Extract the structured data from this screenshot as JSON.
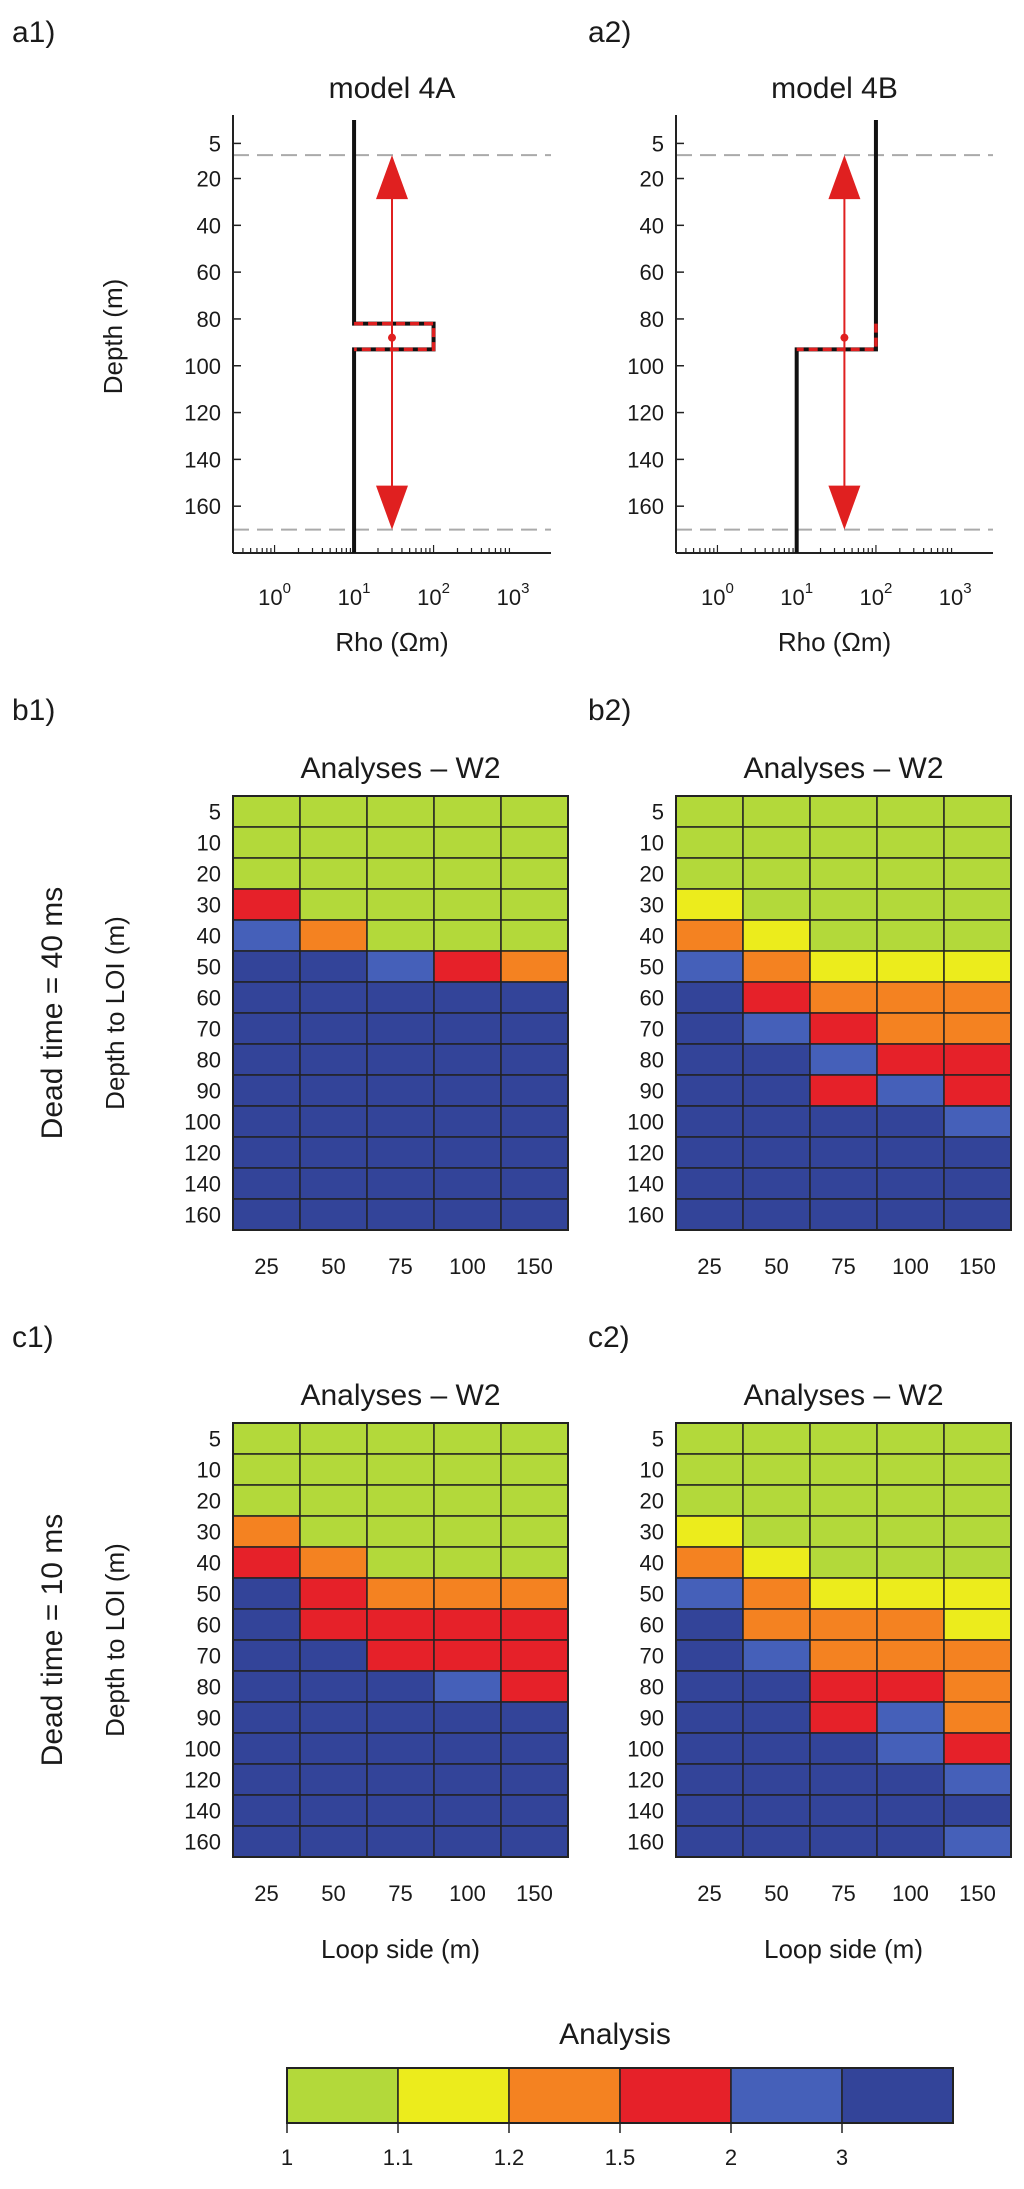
{
  "chart_data": [
    {
      "id": "a1",
      "type": "line",
      "panel_label": "a1)",
      "title": "model 4A",
      "xlabel": "Rho (Ωm)",
      "ylabel": "Depth (m)",
      "xscale": "log",
      "xlim": [
        0.3,
        3000
      ],
      "xtick_labels": [
        {
          "base": "10",
          "exp": "0",
          "value": 1
        },
        {
          "base": "10",
          "exp": "1",
          "value": 10
        },
        {
          "base": "10",
          "exp": "2",
          "value": 100
        },
        {
          "base": "10",
          "exp": "3",
          "value": 1000
        }
      ],
      "ylim": [
        180,
        -5
      ],
      "yticks": [
        5,
        20,
        40,
        60,
        80,
        100,
        120,
        140,
        160
      ],
      "reference_lines_depth": [
        10,
        170
      ],
      "model_profile": {
        "depth": [
          -5,
          82,
          82,
          93,
          93,
          180
        ],
        "rho": [
          10,
          10,
          100,
          100,
          10,
          10
        ]
      },
      "perturbed_profile": {
        "depth": [
          82,
          82,
          93,
          93
        ],
        "rho": [
          10,
          100,
          100,
          10
        ]
      },
      "arrow": {
        "rho": 30,
        "depth_from": 10,
        "depth_to": 170,
        "mid_depth": 88
      }
    },
    {
      "id": "a2",
      "type": "line",
      "panel_label": "a2)",
      "title": "model 4B",
      "xlabel": "Rho (Ωm)",
      "ylabel": "",
      "xscale": "log",
      "xlim": [
        0.3,
        3000
      ],
      "xtick_labels": [
        {
          "base": "10",
          "exp": "0",
          "value": 1
        },
        {
          "base": "10",
          "exp": "1",
          "value": 10
        },
        {
          "base": "10",
          "exp": "2",
          "value": 100
        },
        {
          "base": "10",
          "exp": "3",
          "value": 1000
        }
      ],
      "ylim": [
        180,
        -5
      ],
      "yticks": [
        5,
        20,
        40,
        60,
        80,
        100,
        120,
        140,
        160
      ],
      "reference_lines_depth": [
        10,
        170
      ],
      "model_profile": {
        "depth": [
          -5,
          93,
          93,
          180
        ],
        "rho": [
          100,
          100,
          10,
          10
        ]
      },
      "perturbed_profile": {
        "depth": [
          82,
          82,
          93,
          93
        ],
        "rho": [
          100,
          100,
          100,
          10
        ]
      },
      "arrow": {
        "rho": 40,
        "depth_from": 10,
        "depth_to": 170,
        "mid_depth": 88
      }
    },
    {
      "id": "b1",
      "type": "heatmap",
      "panel_label": "b1)",
      "title": "Analyses – W2",
      "xlabel": "",
      "ylabel": "Depth to LOI (m)",
      "row_label": "Dead time = 40 ms",
      "x": [
        "25",
        "50",
        "75",
        "100",
        "150"
      ],
      "y": [
        "5",
        "10",
        "20",
        "30",
        "40",
        "50",
        "60",
        "70",
        "80",
        "90",
        "100",
        "120",
        "140",
        "160"
      ],
      "class_index": [
        [
          0,
          0,
          0,
          0,
          0
        ],
        [
          0,
          0,
          0,
          0,
          0
        ],
        [
          0,
          0,
          0,
          0,
          0
        ],
        [
          3,
          0,
          0,
          0,
          0
        ],
        [
          4,
          2,
          0,
          0,
          0
        ],
        [
          5,
          5,
          4,
          3,
          2
        ],
        [
          5,
          5,
          5,
          5,
          5
        ],
        [
          5,
          5,
          5,
          5,
          5
        ],
        [
          5,
          5,
          5,
          5,
          5
        ],
        [
          5,
          5,
          5,
          5,
          5
        ],
        [
          5,
          5,
          5,
          5,
          5
        ],
        [
          5,
          5,
          5,
          5,
          5
        ],
        [
          5,
          5,
          5,
          5,
          5
        ],
        [
          5,
          5,
          5,
          5,
          5
        ]
      ]
    },
    {
      "id": "b2",
      "type": "heatmap",
      "panel_label": "b2)",
      "title": "Analyses – W2",
      "xlabel": "",
      "ylabel": "",
      "x": [
        "25",
        "50",
        "75",
        "100",
        "150"
      ],
      "y": [
        "5",
        "10",
        "20",
        "30",
        "40",
        "50",
        "60",
        "70",
        "80",
        "90",
        "100",
        "120",
        "140",
        "160"
      ],
      "class_index": [
        [
          0,
          0,
          0,
          0,
          0
        ],
        [
          0,
          0,
          0,
          0,
          0
        ],
        [
          0,
          0,
          0,
          0,
          0
        ],
        [
          1,
          0,
          0,
          0,
          0
        ],
        [
          2,
          1,
          0,
          0,
          0
        ],
        [
          4,
          2,
          1,
          1,
          1
        ],
        [
          5,
          3,
          2,
          2,
          2
        ],
        [
          5,
          4,
          3,
          2,
          2
        ],
        [
          5,
          5,
          4,
          3,
          3
        ],
        [
          5,
          5,
          3,
          4,
          3
        ],
        [
          5,
          5,
          5,
          5,
          4
        ],
        [
          5,
          5,
          5,
          5,
          5
        ],
        [
          5,
          5,
          5,
          5,
          5
        ],
        [
          5,
          5,
          5,
          5,
          5
        ]
      ]
    },
    {
      "id": "c1",
      "type": "heatmap",
      "panel_label": "c1)",
      "title": "Analyses – W2",
      "xlabel": "Loop side (m)",
      "ylabel": "Depth to LOI (m)",
      "row_label": "Dead time = 10 ms",
      "x": [
        "25",
        "50",
        "75",
        "100",
        "150"
      ],
      "y": [
        "5",
        "10",
        "20",
        "30",
        "40",
        "50",
        "60",
        "70",
        "80",
        "90",
        "100",
        "120",
        "140",
        "160"
      ],
      "class_index": [
        [
          0,
          0,
          0,
          0,
          0
        ],
        [
          0,
          0,
          0,
          0,
          0
        ],
        [
          0,
          0,
          0,
          0,
          0
        ],
        [
          2,
          0,
          0,
          0,
          0
        ],
        [
          3,
          2,
          0,
          0,
          0
        ],
        [
          5,
          3,
          2,
          2,
          2
        ],
        [
          5,
          3,
          3,
          3,
          3
        ],
        [
          5,
          5,
          3,
          3,
          3
        ],
        [
          5,
          5,
          5,
          4,
          3
        ],
        [
          5,
          5,
          5,
          5,
          5
        ],
        [
          5,
          5,
          5,
          5,
          5
        ],
        [
          5,
          5,
          5,
          5,
          5
        ],
        [
          5,
          5,
          5,
          5,
          5
        ],
        [
          5,
          5,
          5,
          5,
          5
        ]
      ]
    },
    {
      "id": "c2",
      "type": "heatmap",
      "panel_label": "c2)",
      "title": "Analyses – W2",
      "xlabel": "Loop side (m)",
      "ylabel": "",
      "x": [
        "25",
        "50",
        "75",
        "100",
        "150"
      ],
      "y": [
        "5",
        "10",
        "20",
        "30",
        "40",
        "50",
        "60",
        "70",
        "80",
        "90",
        "100",
        "120",
        "140",
        "160"
      ],
      "class_index": [
        [
          0,
          0,
          0,
          0,
          0
        ],
        [
          0,
          0,
          0,
          0,
          0
        ],
        [
          0,
          0,
          0,
          0,
          0
        ],
        [
          1,
          0,
          0,
          0,
          0
        ],
        [
          2,
          1,
          0,
          0,
          0
        ],
        [
          4,
          2,
          1,
          1,
          1
        ],
        [
          5,
          2,
          2,
          2,
          1
        ],
        [
          5,
          4,
          2,
          2,
          2
        ],
        [
          5,
          5,
          3,
          3,
          2
        ],
        [
          5,
          5,
          3,
          4,
          2
        ],
        [
          5,
          5,
          5,
          4,
          3
        ],
        [
          5,
          5,
          5,
          5,
          4
        ],
        [
          5,
          5,
          5,
          5,
          5
        ],
        [
          5,
          5,
          5,
          5,
          4
        ]
      ]
    }
  ],
  "legend": {
    "title": "Analysis",
    "boundaries": [
      "1",
      "1.1",
      "1.2",
      "1.5",
      "2",
      "3"
    ],
    "colors": [
      "#b3d93a",
      "#ecec1c",
      "#f48221",
      "#e62129",
      "#4560b9",
      "#334499"
    ]
  },
  "colors": {
    "model_line": "#111111",
    "perturbation": "#e02020",
    "reference_dash": "#aaaaaa",
    "grid": "#222222"
  }
}
